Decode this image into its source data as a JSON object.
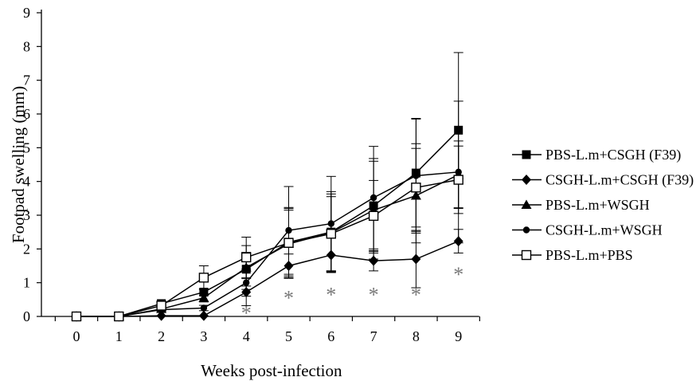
{
  "chart_data": {
    "type": "line",
    "title": "",
    "xlabel": "Weeks post-infection",
    "ylabel": "Footpad swelling (mm)",
    "x": [
      0,
      1,
      2,
      3,
      4,
      5,
      6,
      7,
      8,
      9
    ],
    "xlim": [
      0,
      9
    ],
    "ylim": [
      0,
      9
    ],
    "yticks": [
      0,
      1,
      2,
      3,
      4,
      5,
      6,
      7,
      8,
      9
    ],
    "xtick_labels": [
      "0",
      "1",
      "2",
      "3",
      "4",
      "5",
      "6",
      "7",
      "8",
      "9"
    ],
    "ytick_labels": [
      "0",
      "1",
      "2",
      "3",
      "4",
      "5",
      "6",
      "7",
      "8",
      "9"
    ],
    "grid": false,
    "legend_position": "right",
    "series": [
      {
        "name": "PBS-L.m+CSGH (F39)",
        "marker": "filled-square",
        "values": [
          0,
          0,
          0.38,
          0.72,
          1.4,
          2.2,
          2.5,
          3.28,
          4.25,
          5.52
        ],
        "error": [
          0,
          0,
          0.05,
          0.1,
          0.5,
          1.0,
          1.2,
          1.4,
          1.6,
          2.3
        ]
      },
      {
        "name": "CSGH-L.m+CSGH (F39)",
        "marker": "filled-diamond",
        "values": [
          0,
          0,
          0.02,
          0.02,
          0.72,
          1.5,
          1.82,
          1.65,
          1.7,
          2.23
        ],
        "error": [
          0,
          0,
          0.0,
          0.0,
          0.4,
          0.35,
          0.5,
          0.3,
          0.85,
          0.35
        ]
      },
      {
        "name": "PBS-L.m+WSGH",
        "marker": "filled-triangle",
        "values": [
          0,
          0,
          0.22,
          0.55,
          1.45,
          2.15,
          2.48,
          3.15,
          3.58,
          4.2
        ],
        "error": [
          0,
          0,
          0.05,
          0.12,
          0.65,
          1.0,
          1.15,
          1.45,
          1.4,
          1.0
        ]
      },
      {
        "name": "CSGH-L.m+WSGH",
        "marker": "filled-circle",
        "values": [
          0,
          0,
          0.2,
          0.25,
          1.0,
          2.55,
          2.75,
          3.52,
          4.17,
          4.28
        ],
        "error": [
          0,
          0,
          0.05,
          0.08,
          0.4,
          1.3,
          1.4,
          1.52,
          1.7,
          2.1
        ]
      },
      {
        "name": "PBS-L.m+PBS",
        "marker": "open-square",
        "values": [
          0,
          0,
          0.32,
          1.15,
          1.75,
          2.18,
          2.45,
          2.98,
          3.82,
          4.05
        ],
        "error": [
          0,
          0,
          0.05,
          0.35,
          0.6,
          1.05,
          1.1,
          1.05,
          1.3,
          1.0
        ]
      }
    ],
    "annotations": [
      {
        "text": "*",
        "x": 4,
        "y": 0.2
      },
      {
        "text": "*",
        "x": 5,
        "y": 0.65
      },
      {
        "text": "*",
        "x": 6,
        "y": 0.75
      },
      {
        "text": "*",
        "x": 7,
        "y": 0.75
      },
      {
        "text": "*",
        "x": 8,
        "y": 0.75
      },
      {
        "text": "*",
        "x": 9,
        "y": 1.35
      }
    ]
  }
}
